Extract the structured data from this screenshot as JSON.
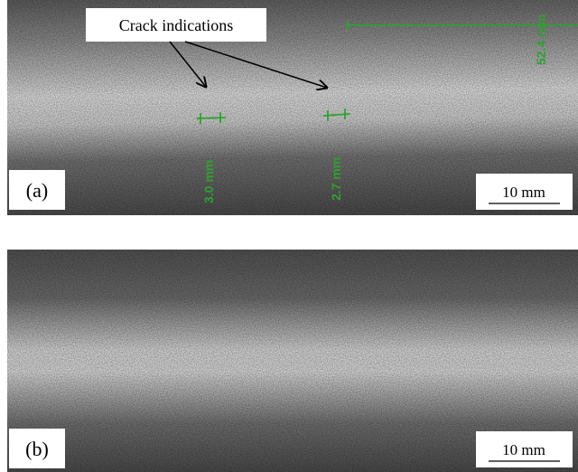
{
  "panels": [
    {
      "label": "(a)",
      "scale_bar": "10 mm",
      "annotation": "Crack indications",
      "measurements": [
        "3.0 mm",
        "2.7 mm",
        "52.4 mm"
      ]
    },
    {
      "label": "(b)",
      "scale_bar": "10 mm"
    }
  ]
}
